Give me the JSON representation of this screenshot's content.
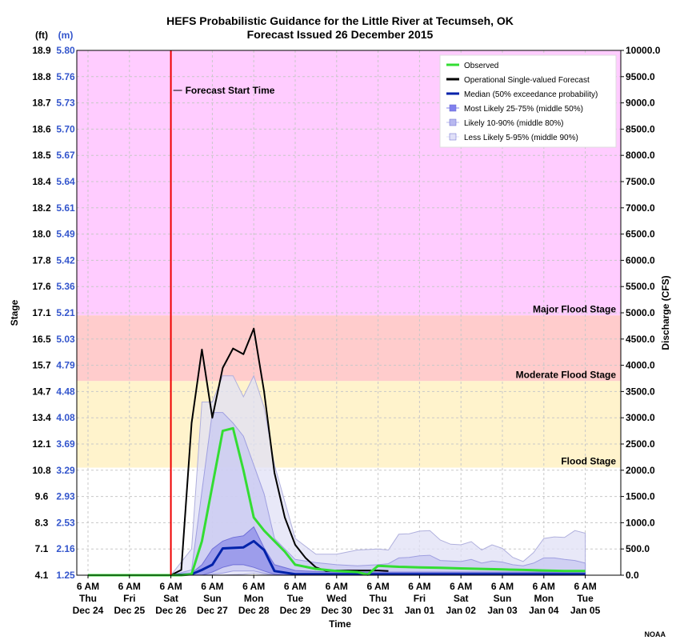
{
  "chart_data": {
    "type": "area",
    "title": "HEFS Probabilistic Guidance for the Little River at Tecumseh, OK",
    "subtitle": "Forecast Issued 26 December 2015",
    "xlabel": "Time",
    "ylabel_left": "Stage",
    "ylabel_right": "Discharge (CFS)",
    "left_units_ft": "(ft)",
    "left_units_m": "(m)",
    "credit": "NOAA",
    "grid": true,
    "legend_position": "top-right",
    "y_right_lim": [
      0,
      10000
    ],
    "y_right_ticks": [
      "10000.0",
      "9500.0",
      "9000.0",
      "8500.0",
      "8000.0",
      "7500.0",
      "7000.0",
      "6500.0",
      "6000.0",
      "5500.0",
      "5000.0",
      "4500.0",
      "4000.0",
      "3500.0",
      "3000.0",
      "2500.0",
      "2000.0",
      "1500.0",
      "1000.0",
      "500.0",
      "0.0"
    ],
    "y_left_ft_ticks": [
      "18.9",
      "18.8",
      "18.7",
      "18.6",
      "18.5",
      "18.4",
      "18.2",
      "18.0",
      "17.8",
      "17.6",
      "17.1",
      "16.5",
      "15.7",
      "14.7",
      "13.4",
      "12.1",
      "10.8",
      "9.6",
      "8.3",
      "7.1",
      "4.1"
    ],
    "y_left_m_ticks": [
      "5.80",
      "5.76",
      "5.73",
      "5.70",
      "5.67",
      "5.64",
      "5.61",
      "5.49",
      "5.42",
      "5.36",
      "5.21",
      "5.03",
      "4.79",
      "4.48",
      "4.08",
      "3.69",
      "3.29",
      "2.93",
      "2.53",
      "2.16",
      "1.25"
    ],
    "x_ticks": [
      {
        "line1": "6 AM",
        "line2": "Thu",
        "line3": "Dec 24"
      },
      {
        "line1": "6 AM",
        "line2": "Fri",
        "line3": "Dec 25"
      },
      {
        "line1": "6 AM",
        "line2": "Sat",
        "line3": "Dec 26"
      },
      {
        "line1": "6 AM",
        "line2": "Sun",
        "line3": "Dec 27"
      },
      {
        "line1": "6 AM",
        "line2": "Mon",
        "line3": "Dec 28"
      },
      {
        "line1": "6 AM",
        "line2": "Tue",
        "line3": "Dec 29"
      },
      {
        "line1": "6 AM",
        "line2": "Wed",
        "line3": "Dec 30"
      },
      {
        "line1": "6 AM",
        "line2": "Thu",
        "line3": "Dec 31"
      },
      {
        "line1": "6 AM",
        "line2": "Fri",
        "line3": "Jan 01"
      },
      {
        "line1": "6 AM",
        "line2": "Sat",
        "line3": "Jan 02"
      },
      {
        "line1": "6 AM",
        "line2": "Sun",
        "line3": "Jan 03"
      },
      {
        "line1": "6 AM",
        "line2": "Mon",
        "line3": "Jan 04"
      },
      {
        "line1": "6 AM",
        "line2": "Tue",
        "line3": "Jan 05"
      }
    ],
    "x_units": "days since 6 AM Thu Dec 24",
    "forecast_start": {
      "x": 2.0,
      "label": "Forecast Start Time",
      "color": "#ee0000"
    },
    "flood_zones": [
      {
        "name": "Major Flood Stage",
        "from": 4950,
        "to": 10000,
        "color": "#ffccff"
      },
      {
        "name": "Moderate Flood Stage",
        "from": 3700,
        "to": 4950,
        "color": "#ffcccc"
      },
      {
        "name": "Flood Stage",
        "from": 2050,
        "to": 3700,
        "color": "#fff3cc"
      }
    ],
    "legend": [
      {
        "label": "Observed",
        "kind": "line",
        "color": "#33dd33"
      },
      {
        "label": "Operational Single-valued Forecast",
        "kind": "line",
        "color": "#000000"
      },
      {
        "label": "Median (50% exceedance probability)",
        "kind": "line",
        "color": "#0022aa"
      },
      {
        "label": "Most Likely 25-75% (middle 50%)",
        "kind": "box",
        "color": "#8080ee"
      },
      {
        "label": "Likely 10-90% (middle 80%)",
        "kind": "box",
        "color": "#b8b8f0"
      },
      {
        "label": "Less Likely 5-95% (middle 90%)",
        "kind": "box",
        "color": "#e0e0f8"
      }
    ],
    "series": [
      {
        "name": "Less Likely 5-95% (middle 90%)",
        "kind": "band",
        "fill": "#e0e0f6",
        "stroke": "#b0b0dd",
        "x": [
          2.0,
          2.5,
          2.75,
          3.0,
          3.25,
          3.5,
          3.75,
          4.0,
          4.25,
          4.5,
          5.0,
          5.5,
          6.0,
          6.5,
          7.0,
          7.25,
          7.5,
          7.75,
          8.0,
          8.25,
          8.5,
          8.75,
          9.0,
          9.25,
          9.5,
          9.75,
          10.0,
          10.25,
          10.5,
          10.75,
          11.0,
          11.25,
          11.5,
          11.75,
          12.0
        ],
        "upper": [
          0,
          500,
          3300,
          3300,
          3800,
          3800,
          3400,
          3800,
          3200,
          2100,
          700,
          400,
          400,
          480,
          500,
          480,
          780,
          790,
          840,
          850,
          670,
          590,
          580,
          640,
          480,
          580,
          510,
          340,
          260,
          430,
          700,
          730,
          720,
          850,
          800
        ],
        "lower": [
          0,
          0,
          0,
          0,
          0,
          10,
          20,
          40,
          20,
          10,
          0,
          0,
          0,
          0,
          0,
          0,
          0,
          0,
          0,
          0,
          0,
          0,
          0,
          0,
          0,
          0,
          0,
          0,
          0,
          0,
          0,
          0,
          0,
          0,
          0
        ]
      },
      {
        "name": "Likely 10-90% (middle 80%)",
        "kind": "band",
        "fill": "#c8c8f2",
        "stroke": "#9f9fe0",
        "x": [
          2.0,
          2.5,
          2.75,
          3.0,
          3.25,
          3.5,
          3.75,
          4.0,
          4.25,
          4.5,
          5.0,
          5.5,
          6.0,
          6.5,
          7.0,
          7.25,
          7.5,
          7.75,
          8.0,
          8.25,
          8.5,
          8.75,
          9.0,
          9.25,
          9.5,
          9.75,
          10.0,
          10.25,
          10.5,
          10.75,
          11.0,
          11.25,
          11.5,
          11.75,
          12.0
        ],
        "upper": [
          0,
          100,
          1600,
          3100,
          3100,
          2900,
          2650,
          2100,
          1550,
          700,
          300,
          240,
          200,
          180,
          200,
          220,
          330,
          340,
          370,
          380,
          280,
          270,
          260,
          300,
          230,
          270,
          250,
          200,
          180,
          230,
          330,
          330,
          300,
          280,
          230
        ],
        "lower": [
          0,
          0,
          0,
          20,
          40,
          80,
          80,
          80,
          40,
          10,
          0,
          0,
          0,
          0,
          0,
          0,
          0,
          0,
          0,
          0,
          0,
          0,
          0,
          0,
          0,
          0,
          0,
          0,
          0,
          0,
          0,
          0,
          0,
          0,
          0
        ]
      },
      {
        "name": "Most Likely 25-75% (middle 50%)",
        "kind": "band",
        "fill": "#8c8ce8",
        "stroke": "#7070d8",
        "x": [
          2.0,
          2.5,
          2.75,
          3.0,
          3.25,
          3.5,
          3.75,
          4.0,
          4.25,
          4.5,
          5.0,
          5.5,
          6.0,
          6.5,
          7.0,
          7.5,
          8.0,
          8.5,
          9.0,
          9.5,
          10.0,
          10.5,
          11.0,
          11.5,
          12.0
        ],
        "upper": [
          0,
          40,
          200,
          500,
          650,
          720,
          750,
          920,
          520,
          200,
          90,
          70,
          60,
          60,
          60,
          60,
          60,
          60,
          60,
          60,
          60,
          60,
          60,
          60,
          60
        ],
        "lower": [
          0,
          0,
          0,
          60,
          150,
          200,
          200,
          150,
          80,
          20,
          0,
          0,
          0,
          0,
          0,
          0,
          0,
          0,
          0,
          0,
          0,
          0,
          0,
          0,
          0
        ]
      },
      {
        "name": "Median (50% exceedance probability)",
        "kind": "line",
        "color": "#0022aa",
        "width": 3,
        "x": [
          2.0,
          2.5,
          2.75,
          3.0,
          3.25,
          3.5,
          3.75,
          4.0,
          4.25,
          4.5,
          5.0,
          5.5,
          6.0,
          6.5,
          7.0,
          7.5,
          8.0,
          8.5,
          9.0,
          9.5,
          10.0,
          10.5,
          11.0,
          11.5,
          12.0
        ],
        "y": [
          0,
          20,
          100,
          200,
          510,
          520,
          530,
          650,
          480,
          80,
          20,
          20,
          20,
          20,
          20,
          20,
          20,
          20,
          20,
          20,
          20,
          20,
          20,
          20,
          20
        ]
      },
      {
        "name": "Operational Single-valued Forecast",
        "kind": "line",
        "color": "#000000",
        "width": 2,
        "x": [
          2.0,
          2.25,
          2.5,
          2.75,
          3.0,
          3.25,
          3.5,
          3.75,
          4.0,
          4.25,
          4.5,
          4.75,
          5.0,
          5.25,
          5.5,
          5.75,
          6.0,
          6.5,
          7.0,
          7.25
        ],
        "y": [
          0,
          100,
          2900,
          4300,
          3000,
          3950,
          4320,
          4210,
          4700,
          3500,
          1950,
          1100,
          580,
          330,
          150,
          80,
          90,
          90,
          90,
          80
        ]
      },
      {
        "name": "Observed",
        "kind": "line",
        "color": "#33dd33",
        "width": 3,
        "x": [
          0,
          0.5,
          1.0,
          1.5,
          2.0,
          2.25,
          2.5,
          2.75,
          3.0,
          3.25,
          3.5,
          3.75,
          4.0,
          4.25,
          4.5,
          4.75,
          5.0,
          5.5,
          6.0,
          6.5,
          6.75,
          7.0,
          7.5,
          8.0,
          8.5,
          9.0,
          9.5,
          10.0,
          10.5,
          11.0,
          11.5,
          12.0
        ],
        "y": [
          0,
          0,
          0,
          0,
          0,
          0,
          20,
          650,
          1700,
          2750,
          2800,
          2000,
          1100,
          850,
          650,
          450,
          200,
          120,
          80,
          60,
          10,
          180,
          160,
          150,
          140,
          130,
          120,
          110,
          100,
          90,
          80,
          80
        ]
      }
    ]
  }
}
